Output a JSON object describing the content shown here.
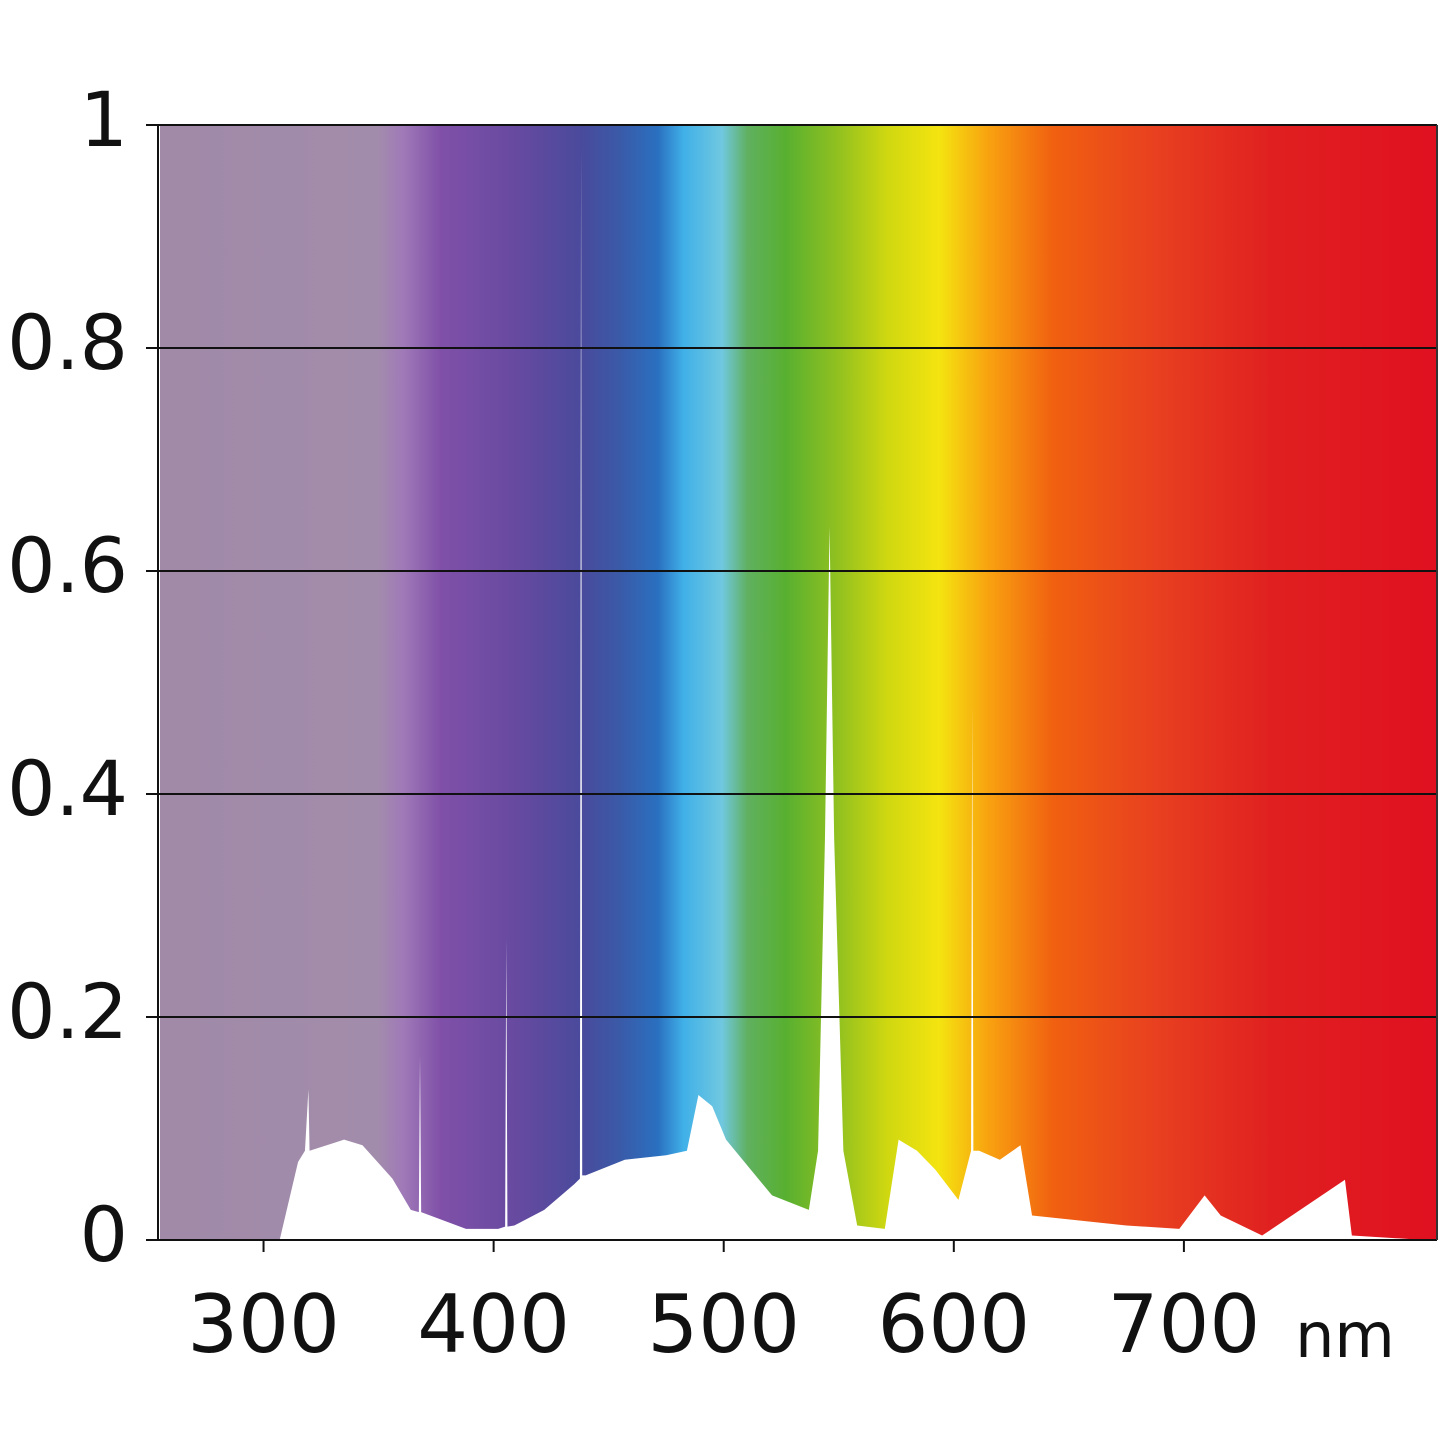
{
  "chart_data": {
    "type": "area",
    "color": "#ffffff",
    "x_unit": "nm",
    "x": [
      307,
      315,
      318,
      319.5,
      320,
      335,
      343,
      356,
      364,
      367.5,
      368,
      368.5,
      388,
      402,
      405,
      405.5,
      406,
      409,
      422,
      435,
      437.5,
      438,
      438.5,
      440,
      457,
      475,
      484,
      489,
      495,
      501,
      521,
      537,
      541,
      544,
      546,
      548,
      552,
      558,
      570,
      576,
      584,
      592,
      602,
      607.5,
      608,
      608.5,
      611,
      620,
      629,
      634,
      652,
      675,
      698,
      709,
      716,
      734,
      770,
      773,
      805
    ],
    "values": [
      0,
      0.07,
      0.08,
      0.135,
      0.08,
      0.09,
      0.085,
      0.055,
      0.027,
      0.025,
      0.165,
      0.025,
      0.01,
      0.01,
      0.012,
      0.27,
      0.012,
      0.013,
      0.027,
      0.05,
      0.055,
      0.98,
      0.058,
      0.058,
      0.072,
      0.076,
      0.08,
      0.13,
      0.12,
      0.09,
      0.04,
      0.027,
      0.08,
      0.36,
      0.64,
      0.36,
      0.08,
      0.013,
      0.01,
      0.09,
      0.08,
      0.063,
      0.036,
      0.08,
      0.48,
      0.08,
      0.08,
      0.072,
      0.085,
      0.022,
      0.018,
      0.013,
      0.01,
      0.04,
      0.022,
      0.004,
      0.054,
      0.004,
      0
    ],
    "xlim": [
      255,
      810
    ],
    "xticks": [
      300,
      400,
      500,
      600,
      700
    ],
    "ylim": [
      0,
      1
    ],
    "yticks": [
      0,
      0.2,
      0.4,
      0.6,
      0.8,
      1
    ],
    "grid": true
  }
}
